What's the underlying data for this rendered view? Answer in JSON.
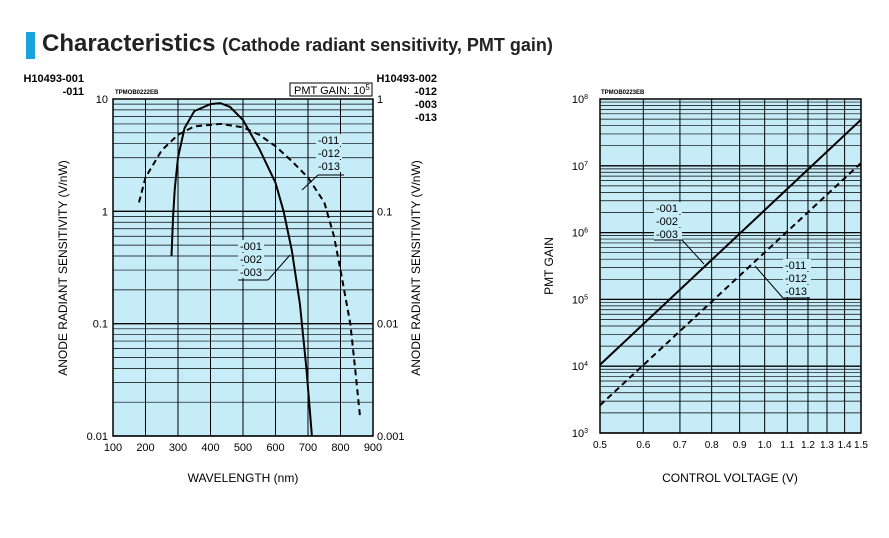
{
  "heading": {
    "title": "Characteristics",
    "subtitle": "(Cathode radiant sensitivity, PMT gain)"
  },
  "colors": {
    "accent": "#1aa3e0",
    "plot_bg": "#c6ecf8"
  },
  "chart_data": [
    {
      "type": "line",
      "code": "TPMOB0222EB",
      "xlabel": "WAVELENGTH (nm)",
      "ylabel": "ANODE RADIANT SENSITIVITY (V/nW)",
      "xlim": [
        100,
        900
      ],
      "ylim": [
        0.01,
        10
      ],
      "yscale": "log",
      "y2lim": [
        0.001,
        1
      ],
      "left_models": [
        "H10493-001",
        "-011"
      ],
      "right_models": [
        "H10493-002",
        "-012",
        "-003",
        "-013"
      ],
      "annotation": "PMT GAIN: 10",
      "annotation_exp": "5",
      "xticks": [
        "100",
        "200",
        "300",
        "400",
        "500",
        "600",
        "700",
        "800",
        "900"
      ],
      "yticks": [
        "10",
        "1",
        "0.1",
        "0.01"
      ],
      "y2ticks": [
        "1",
        "0.1",
        "0.01",
        "0.001"
      ],
      "series": [
        {
          "name": "-001 / -002 / -003",
          "labels": [
            "-001",
            "-002",
            "-003"
          ],
          "style": "solid",
          "x": [
            280,
            285,
            290,
            300,
            320,
            350,
            400,
            430,
            460,
            500,
            550,
            600,
            625,
            650,
            675,
            695,
            712
          ],
          "y": [
            0.4,
            0.9,
            1.6,
            3,
            5.5,
            7.8,
            9,
            9.2,
            8.5,
            6.5,
            3.6,
            1.8,
            1,
            0.45,
            0.15,
            0.04,
            0.01
          ]
        },
        {
          "name": "-011 / -012 / -013",
          "labels": [
            "-011",
            "-012",
            "-013"
          ],
          "style": "dashed",
          "x": [
            180,
            200,
            250,
            300,
            350,
            430,
            500,
            550,
            600,
            650,
            700,
            750,
            780,
            800,
            830,
            845,
            860
          ],
          "y": [
            1.2,
            2,
            3.5,
            4.8,
            5.7,
            6,
            5.6,
            4.8,
            3.8,
            2.8,
            2,
            1.2,
            0.6,
            0.3,
            0.1,
            0.04,
            0.015
          ]
        }
      ]
    },
    {
      "type": "line",
      "code": "TPMOB0223EB",
      "xlabel": "CONTROL VOLTAGE (V)",
      "ylabel": "PMT GAIN",
      "xlim": [
        0.5,
        1.5
      ],
      "xscale": "log",
      "ylim": [
        1000,
        100000000
      ],
      "yscale": "log",
      "xticks": [
        "0.5",
        "0.6",
        "0.7",
        "0.8",
        "0.9",
        "1.0",
        "1.1",
        "1.2",
        "1.3",
        "1.4",
        "1.5"
      ],
      "yticks": [
        "8",
        "7",
        "6",
        "5",
        "4",
        "3"
      ],
      "ytick_base": "10",
      "series": [
        {
          "name": "-001 / -002 / -003",
          "labels": [
            "-001",
            "-002",
            "-003"
          ],
          "style": "solid",
          "x": [
            0.5,
            1.5
          ],
          "y": [
            10500,
            49000000
          ]
        },
        {
          "name": "-011 / -012 / -013",
          "labels": [
            "-011",
            "-012",
            "-013"
          ],
          "style": "dashed",
          "x": [
            0.5,
            1.5
          ],
          "y": [
            2600,
            11000000
          ]
        }
      ]
    }
  ]
}
